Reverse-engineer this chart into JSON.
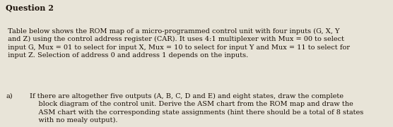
{
  "title": "Question 2",
  "background_color": "#e8e4d8",
  "paragraph1": " Table below shows the ROM map of a micro-programmed control unit with four inputs (G, X, Y\n and Z) using the control address register (CAR). It uses 4:1 multiplexer with Mux = 00 to select\n input G, Mux = 01 to select for input X, Mux = 10 to select for input Y and Mux = 11 to select for\n input Z. Selection of address 0 and address 1 depends on the inputs.",
  "item_a_label": "a)",
  "paragraph2": "If there are altogether five outputs (A, B, C, D and E) and eight states, draw the complete\n    block diagram of the control unit. Derive the ASM chart from the ROM map and draw the\n    ASM chart with the corresponding state assignments (hint there should be a total of 8 states\n    with no mealy output).",
  "title_fontsize": 8.0,
  "body_fontsize": 7.0,
  "text_color": "#1a1008",
  "font_family": "DejaVu Serif"
}
